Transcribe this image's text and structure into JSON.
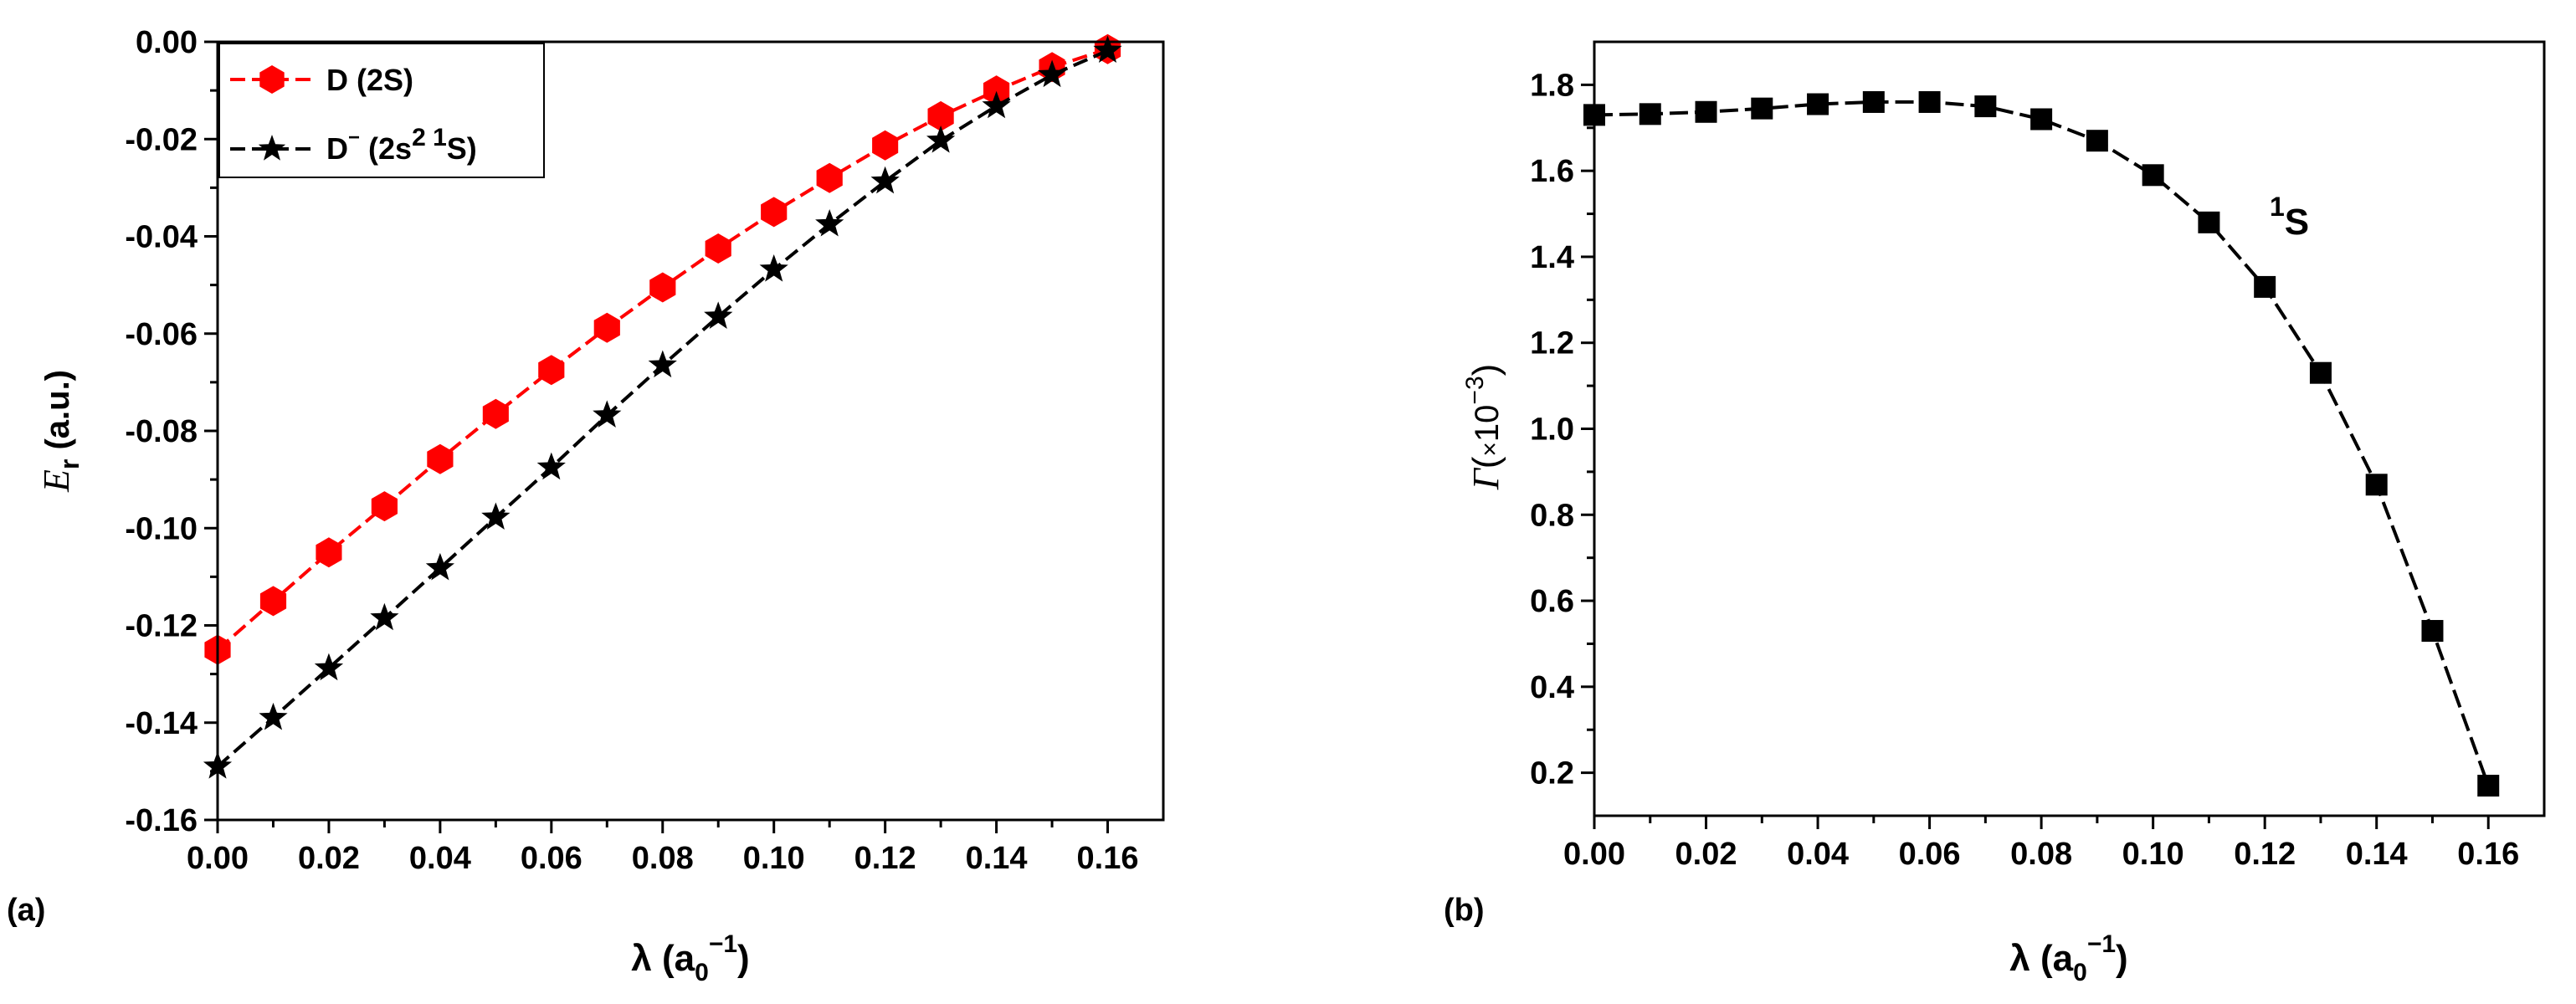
{
  "panels": [
    {
      "tag": "(a)",
      "ylabel": {
        "main": "E",
        "sub": "r",
        "rest": " (a.u.)"
      },
      "xlabel": {
        "main": "λ (a",
        "sub": "0",
        "sup": "−1",
        "close": ")"
      }
    },
    {
      "tag": "(b)",
      "ylabel": {
        "main": "Γ",
        "paren_open": "(",
        "times": "×",
        "base": "10",
        "sup": "−3",
        "paren_close": ")"
      },
      "xlabel": {
        "main": "λ (a",
        "sub": "0",
        "sup": "−1",
        "close": ")"
      },
      "annotation": {
        "sup": "1",
        "text": "S"
      }
    }
  ],
  "legend": [
    {
      "base": "D",
      "suffix": " (2S)"
    },
    {
      "base": "D",
      "sup": "−",
      "mid": " (2s",
      "sup2": "2 1",
      "end": "S)"
    }
  ],
  "chart_data": [
    {
      "type": "line",
      "xlim": [
        0,
        0.17
      ],
      "ylim": [
        -0.16,
        0.0
      ],
      "xticks": [
        "0.00",
        "0.02",
        "0.04",
        "0.06",
        "0.08",
        "0.10",
        "0.12",
        "0.14",
        "0.16"
      ],
      "yticks": [
        "0.00",
        "-0.02",
        "-0.04",
        "-0.06",
        "-0.08",
        "-0.10",
        "-0.12",
        "-0.14",
        "-0.16"
      ],
      "x": [
        0.0,
        0.01,
        0.02,
        0.03,
        0.04,
        0.05,
        0.06,
        0.07,
        0.08,
        0.09,
        0.1,
        0.11,
        0.12,
        0.13,
        0.14,
        0.15,
        0.16
      ],
      "series": [
        {
          "color": "#ff0000",
          "marker": "hexagon",
          "values": [
            -0.125,
            -0.115,
            -0.105,
            -0.0955,
            -0.0858,
            -0.0765,
            -0.0675,
            -0.0588,
            -0.0505,
            -0.0425,
            -0.035,
            -0.028,
            -0.0213,
            -0.0153,
            -0.01,
            -0.0052,
            -0.0015
          ]
        },
        {
          "color": "#000000",
          "marker": "star",
          "values": [
            -0.149,
            -0.139,
            -0.1288,
            -0.1185,
            -0.1082,
            -0.0978,
            -0.0875,
            -0.0768,
            -0.0665,
            -0.0565,
            -0.0468,
            -0.0375,
            -0.0287,
            -0.0203,
            -0.0132,
            -0.0068,
            -0.0018
          ]
        }
      ]
    },
    {
      "type": "line",
      "xlim": [
        0,
        0.17
      ],
      "ylim": [
        0.1,
        1.9
      ],
      "xticks": [
        "0.00",
        "0.02",
        "0.04",
        "0.06",
        "0.08",
        "0.10",
        "0.12",
        "0.14",
        "0.16"
      ],
      "yticks": [
        "0.2",
        "0.4",
        "0.6",
        "0.8",
        "1.0",
        "1.2",
        "1.4",
        "1.6",
        "1.8"
      ],
      "x": [
        0.0,
        0.01,
        0.02,
        0.03,
        0.04,
        0.05,
        0.06,
        0.07,
        0.08,
        0.09,
        0.1,
        0.11,
        0.12,
        0.13,
        0.14,
        0.15,
        0.16
      ],
      "series": [
        {
          "color": "#000000",
          "marker": "square",
          "values": [
            1.73,
            1.732,
            1.737,
            1.745,
            1.755,
            1.76,
            1.76,
            1.75,
            1.72,
            1.67,
            1.59,
            1.48,
            1.33,
            1.13,
            0.87,
            0.53,
            0.17
          ]
        }
      ]
    }
  ]
}
